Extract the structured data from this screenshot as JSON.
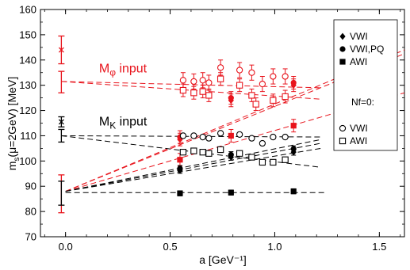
{
  "colors": {
    "red": "#e8141c",
    "black": "#000000",
    "frame": "#000000"
  },
  "chart_data": {
    "type": "scatter",
    "xlabel": "a  [GeV⁻¹]",
    "ylabel": "m_s(μ=2GeV)  [MeV]",
    "ylabel_parts": {
      "m": "m",
      "sub": "s",
      "rest": "(μ=2GeV)  [MeV]"
    },
    "xlim": [
      -0.12,
      1.62
    ],
    "ylim": [
      70,
      160
    ],
    "x_ticks": [
      0.0,
      0.5,
      1.0,
      1.5
    ],
    "x_tick_labels": [
      "0.0",
      "0.5",
      "1.0",
      "1.5"
    ],
    "y_ticks": [
      70,
      80,
      90,
      100,
      110,
      120,
      130,
      140,
      150,
      160
    ],
    "y_tick_labels": [
      "70",
      "80",
      "90",
      "100",
      "110",
      "120",
      "130",
      "140",
      "150",
      "160"
    ],
    "annotations": {
      "phi": {
        "base": "M",
        "sub": "φ",
        "rest": " input",
        "color": "red",
        "x": 0.16,
        "y": 135
      },
      "K": {
        "base": "M",
        "sub": "K",
        "rest": " input",
        "color": "black",
        "x": 0.16,
        "y": 114
      }
    },
    "legend": {
      "items": [
        {
          "label": "VWI",
          "marker": "diamond-filled"
        },
        {
          "label": "VWI,PQ",
          "marker": "circle-filled"
        },
        {
          "label": "AWI",
          "marker": "square-filled"
        }
      ],
      "subtitle": "Nf=0:",
      "items2": [
        {
          "label": "VWI",
          "marker": "circle-open"
        },
        {
          "label": "AWI",
          "marker": "square-open"
        }
      ]
    },
    "series": [
      {
        "color": "red",
        "marker": "diamond-filled",
        "points": [
          [
            0.547,
            108.5,
            2.5
          ],
          [
            0.791,
            124.0,
            2.5
          ],
          [
            1.09,
            130.0,
            2.5
          ]
        ]
      },
      {
        "color": "red",
        "marker": "circle-filled",
        "points": [
          [
            0.547,
            109.5,
            2.5
          ],
          [
            0.791,
            125.0,
            2.5
          ],
          [
            1.09,
            131.0,
            2.5
          ]
        ]
      },
      {
        "color": "red",
        "marker": "square-filled",
        "points": [
          [
            0.547,
            100.5,
            2.5
          ],
          [
            0.791,
            110.0,
            2.5
          ],
          [
            1.09,
            114.0,
            2.5
          ]
        ]
      },
      {
        "color": "black",
        "marker": "diamond-filled",
        "points": [
          [
            0.547,
            96.3,
            1.2
          ],
          [
            0.791,
            101.5,
            1.2
          ],
          [
            1.09,
            103.5,
            1.2
          ]
        ]
      },
      {
        "color": "black",
        "marker": "circle-filled",
        "points": [
          [
            0.547,
            97.0,
            1.2
          ],
          [
            0.791,
            102.5,
            1.2
          ],
          [
            1.09,
            104.8,
            1.2
          ]
        ]
      },
      {
        "color": "black",
        "marker": "square-filled",
        "points": [
          [
            0.547,
            87.2,
            1.0
          ],
          [
            0.791,
            87.5,
            1.0
          ],
          [
            1.09,
            88.0,
            1.0
          ]
        ]
      },
      {
        "color": "red",
        "marker": "circle-open",
        "points": [
          [
            0.562,
            132.0,
            3.0
          ],
          [
            0.613,
            131.5,
            3.0
          ],
          [
            0.656,
            132.0,
            3.0
          ],
          [
            0.685,
            131.0,
            3.0
          ],
          [
            0.741,
            137.0,
            3.0
          ],
          [
            0.832,
            136.0,
            3.0
          ],
          [
            0.89,
            135.0,
            3.0
          ],
          [
            0.941,
            130.5,
            3.0
          ],
          [
            0.992,
            133.5,
            3.0
          ],
          [
            1.05,
            133.5,
            3.0
          ]
        ]
      },
      {
        "color": "red",
        "marker": "square-open",
        "points": [
          [
            0.562,
            128.0,
            2.5
          ],
          [
            0.613,
            127.0,
            2.5
          ],
          [
            0.656,
            127.5,
            2.5
          ],
          [
            0.685,
            126.0,
            2.5
          ],
          [
            0.741,
            132.5,
            2.5
          ],
          [
            0.832,
            130.0,
            2.5
          ],
          [
            0.89,
            126.0,
            2.5
          ],
          [
            0.91,
            122.5,
            2.5
          ],
          [
            0.992,
            124.0,
            2.5
          ],
          [
            1.05,
            125.5,
            2.5
          ]
        ]
      },
      {
        "color": "black",
        "marker": "circle-open",
        "points": [
          [
            0.562,
            110.0
          ],
          [
            0.613,
            110.0
          ],
          [
            0.656,
            109.5
          ],
          [
            0.685,
            109.0
          ],
          [
            0.741,
            111.0
          ],
          [
            0.832,
            110.5
          ],
          [
            0.89,
            109.0
          ],
          [
            0.941,
            107.0
          ],
          [
            0.992,
            109.5
          ],
          [
            1.05,
            109.5
          ]
        ]
      },
      {
        "color": "black",
        "marker": "square-open",
        "points": [
          [
            0.562,
            103.5
          ],
          [
            0.613,
            104.0
          ],
          [
            0.656,
            103.5
          ],
          [
            0.685,
            103.0
          ],
          [
            0.741,
            104.5
          ],
          [
            0.832,
            103.0
          ],
          [
            0.89,
            101.5
          ],
          [
            0.941,
            99.5
          ],
          [
            0.992,
            99.5
          ],
          [
            1.05,
            100.5
          ]
        ]
      }
    ],
    "continuum_points": [
      {
        "color": "red",
        "marker": "x",
        "x": -0.02,
        "y": 144.0,
        "err": [
          138.5,
          149.5
        ]
      },
      {
        "color": "red",
        "marker": "errbar",
        "x": -0.02,
        "y": 131.5,
        "err": [
          127.0,
          135.5
        ]
      },
      {
        "color": "red",
        "marker": "errbar",
        "x": -0.02,
        "y": 88.0,
        "err": [
          79.5,
          94.5
        ]
      },
      {
        "color": "black",
        "marker": "x",
        "x": -0.02,
        "y": 115.5,
        "err": [
          113.5,
          117.5
        ]
      },
      {
        "color": "black",
        "marker": "errbar",
        "x": -0.02,
        "y": 110.0,
        "err": [
          107.5,
          112.5
        ]
      },
      {
        "color": "black",
        "marker": "errbar",
        "x": -0.02,
        "y": 88.5,
        "err": [
          82.5,
          92.0
        ]
      }
    ],
    "fit_lines": [
      {
        "color": "red",
        "x0": 0.0,
        "y0": 88.0,
        "x1": 1.62,
        "y1": 144.0
      },
      {
        "color": "red",
        "x0": 0.0,
        "y0": 88.0,
        "x1": 1.62,
        "y1": 142.5
      },
      {
        "color": "red",
        "x0": 0.0,
        "y0": 88.0,
        "x1": 1.62,
        "y1": 127.0
      },
      {
        "color": "black",
        "x0": 0.0,
        "y0": 88.0,
        "x1": 1.22,
        "y1": 108.5
      },
      {
        "color": "black",
        "x0": 0.0,
        "y0": 88.0,
        "x1": 1.22,
        "y1": 107.0
      },
      {
        "color": "black",
        "x0": 0.0,
        "y0": 88.0,
        "x1": 1.22,
        "y1": 105.0
      },
      {
        "color": "black",
        "x0": 0.0,
        "y0": 87.5,
        "x1": 1.25,
        "y1": 87.5
      },
      {
        "color": "red",
        "x0": -0.02,
        "y0": 131.5,
        "x1": 1.22,
        "y1": 129.0
      },
      {
        "color": "red",
        "x0": -0.02,
        "y0": 131.5,
        "x1": 1.22,
        "y1": 124.5
      },
      {
        "color": "black",
        "x0": -0.02,
        "y0": 110.0,
        "x1": 1.22,
        "y1": 109.5
      },
      {
        "color": "black",
        "x0": -0.02,
        "y0": 110.0,
        "x1": 1.22,
        "y1": 97.5
      }
    ]
  }
}
